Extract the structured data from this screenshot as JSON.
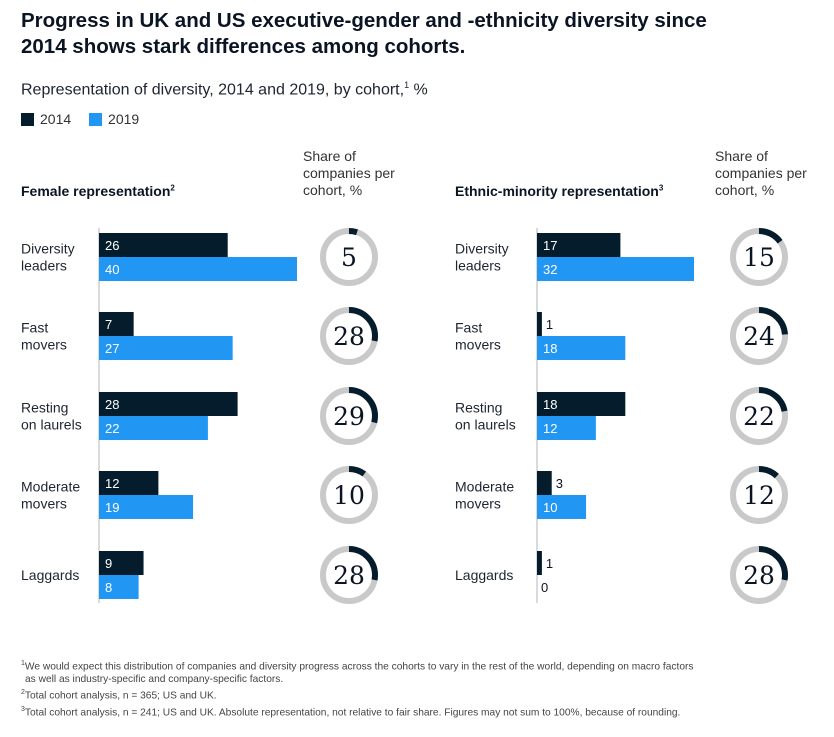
{
  "title_lines": [
    "Progress in UK and US executive-gender and -ethnicity diversity since",
    "2014 shows stark differences among cohorts."
  ],
  "subtitle": "Representation of diversity, 2014 and 2019, by cohort,",
  "subtitle_note": "1",
  "subtitle_unit": "%",
  "share_heading_lines": [
    "Share of",
    "companies per",
    "cohort, %"
  ],
  "colors": {
    "s2014": "#051c2c",
    "s2019": "#2196f3",
    "ring_track": "#c9c9c9",
    "ring_fill": "#051c2c"
  },
  "chart_data": [
    {
      "type": "bar",
      "orientation": "horizontal",
      "title": "Female representation",
      "title_note": "2",
      "categories": [
        [
          "Diversity",
          "leaders"
        ],
        [
          "Fast",
          "movers"
        ],
        [
          "Resting",
          "on laurels"
        ],
        [
          "Moderate",
          "movers"
        ],
        [
          "Laggards"
        ]
      ],
      "series": [
        {
          "name": "2014",
          "values": [
            26,
            7,
            28,
            12,
            9
          ]
        },
        {
          "name": "2019",
          "values": [
            40,
            27,
            22,
            19,
            8
          ]
        }
      ],
      "share_of_companies": [
        5,
        28,
        29,
        10,
        28
      ],
      "xlim": [
        0,
        40
      ]
    },
    {
      "type": "bar",
      "orientation": "horizontal",
      "title": "Ethnic-minority representation",
      "title_note": "3",
      "categories": [
        [
          "Diversity",
          "leaders"
        ],
        [
          "Fast",
          "movers"
        ],
        [
          "Resting",
          "on laurels"
        ],
        [
          "Moderate",
          "movers"
        ],
        [
          "Laggards"
        ]
      ],
      "series": [
        {
          "name": "2014",
          "values": [
            17,
            1,
            18,
            3,
            1
          ]
        },
        {
          "name": "2019",
          "values": [
            32,
            18,
            12,
            10,
            0
          ]
        }
      ],
      "share_of_companies": [
        15,
        24,
        22,
        12,
        28
      ],
      "xlim": [
        0,
        32
      ]
    }
  ],
  "footnotes": [
    {
      "mark": "1",
      "lines": [
        "We would expect this distribution of companies and diversity progress across the cohorts to vary in the rest of the world, depending on macro factors",
        "as well as industry-specific and company-specific factors."
      ]
    },
    {
      "mark": "2",
      "lines": [
        "Total cohort analysis, n = 365; US and UK."
      ]
    },
    {
      "mark": "3",
      "lines": [
        "Total cohort analysis, n = 241; US and UK. Absolute representation, not relative to fair share. Figures may not sum to 100%, because of rounding."
      ]
    }
  ]
}
